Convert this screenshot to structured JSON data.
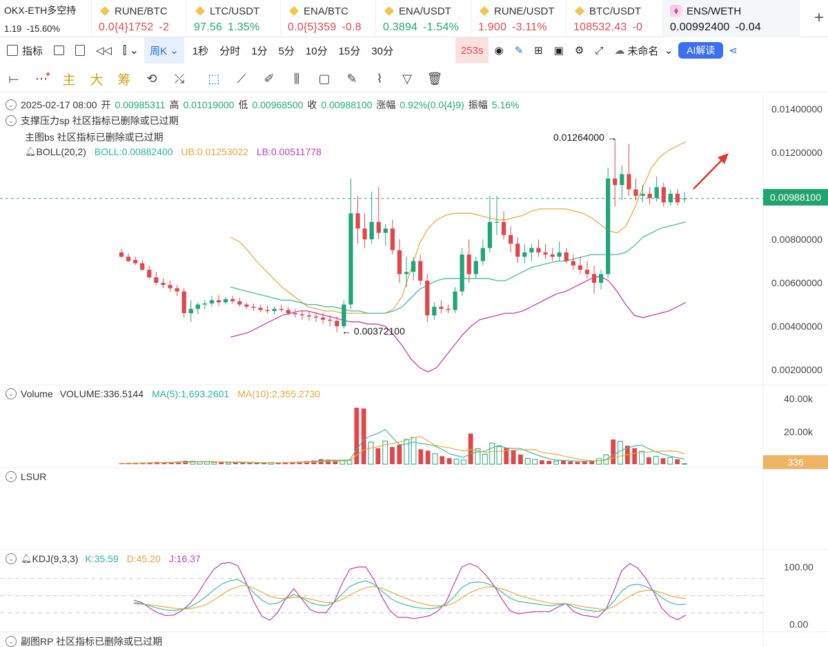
{
  "account": {
    "name": "OKX-ETH多空持",
    "value": "1.19",
    "change": "-15.60%"
  },
  "tickers": [
    {
      "symbol": "RUNE/BTC",
      "price": "0.0{4}1752",
      "change": "-2",
      "color": "red"
    },
    {
      "symbol": "LTC/USDT",
      "price": "97.56",
      "change": "1.35%",
      "color": "green"
    },
    {
      "symbol": "ENA/BTC",
      "price": "0.0{5}359",
      "change": "-0.8",
      "color": "red"
    },
    {
      "symbol": "ENA/USDT",
      "price": "0.3894",
      "change": "-1.54%",
      "color": "green"
    },
    {
      "symbol": "RUNE/USDT",
      "price": "1.900",
      "change": "-3.11%",
      "color": "red"
    },
    {
      "symbol": "BTC/USDT",
      "price": "108532.43",
      "change": "-0",
      "color": "red"
    },
    {
      "symbol": "ENS/WETH",
      "price": "0.00992400",
      "change": "-0.04",
      "color": "dark"
    }
  ],
  "toolbar": {
    "indicators": "指标",
    "interval_selected": "周K",
    "intervals": [
      "1秒",
      "分时",
      "1分",
      "5分",
      "10分",
      "15分",
      "30分"
    ],
    "countdown": "253s",
    "layout_name": "未命名",
    "ai_button": "AI解读"
  },
  "draw_tools": {
    "main": "主",
    "big": "大",
    "chip": "筹"
  },
  "legend": {
    "ohlc_date": "2025-02-17 08:00",
    "open_label": "开",
    "open": "0.00985311",
    "high_label": "高",
    "high": "0.01019000",
    "low_label": "低",
    "low": "0.00968500",
    "close_label": "收",
    "close": "0.00988100",
    "chg_label": "涨幅",
    "chg": "0.92%(0.0{4}9)",
    "amp_label": "振幅",
    "amp": "5.16%",
    "sr_line": "支撑压力sp  社区指标已删除或已过期",
    "bs_line": "主图bs  社区指标已删除或已过期",
    "boll_name": "BOLL(20,2)",
    "boll_mid": "BOLL:0.00882400",
    "boll_ub": "UB:0.01253022",
    "boll_lb": "LB:0.00511778"
  },
  "price_axis": [
    "0.01400000",
    "0.01200000",
    "0.01000000",
    "0.00800000",
    "0.00600000",
    "0.00400000",
    "0.00200000"
  ],
  "price_tag": "0.00988100",
  "annotations": {
    "high": "0.01264000",
    "low": "0.00372100"
  },
  "volume": {
    "title": "Volume",
    "vol": "VOLUME:336.5144",
    "ma5": "MA(5):1,693.2601",
    "ma10": "MA(10):2,355.2730",
    "axis": [
      "40.00k",
      "20.00k"
    ],
    "tag": "336"
  },
  "lsur": {
    "title": "LSUR"
  },
  "kdj": {
    "name": "KDJ(9,3,3)",
    "k": "K:35.59",
    "d": "D:45.20",
    "j": "J:16.37",
    "axis": [
      "100.00",
      "0.00"
    ]
  },
  "rp": {
    "line": "副图RP  社区指标已删除或已过期"
  },
  "colors": {
    "up": "#1fa67a",
    "down": "#e0474b",
    "ub": "#eba93a",
    "lb": "#c43bb3",
    "mid": "#3dbd9c",
    "accent": "#3d6ff2"
  },
  "chart_data": {
    "type": "candlestick",
    "ylim": [
      0.0015,
      0.0145
    ],
    "candles": [
      [
        0.0074,
        0.00755,
        0.00715,
        0.0072
      ],
      [
        0.0072,
        0.00735,
        0.00695,
        0.007
      ],
      [
        0.00705,
        0.0072,
        0.0068,
        0.0069
      ],
      [
        0.0069,
        0.00705,
        0.00655,
        0.0066
      ],
      [
        0.0066,
        0.0068,
        0.00615,
        0.00625
      ],
      [
        0.00625,
        0.0065,
        0.0059,
        0.006
      ],
      [
        0.006,
        0.0062,
        0.00575,
        0.0059
      ],
      [
        0.0059,
        0.0061,
        0.0056,
        0.00575
      ],
      [
        0.00575,
        0.0059,
        0.0054,
        0.0056
      ],
      [
        0.0056,
        0.00575,
        0.0044,
        0.0046
      ],
      [
        0.0046,
        0.0052,
        0.0042,
        0.0048
      ],
      [
        0.0048,
        0.0051,
        0.00455,
        0.005
      ],
      [
        0.005,
        0.0052,
        0.0048,
        0.00505
      ],
      [
        0.00505,
        0.0054,
        0.0049,
        0.0052
      ],
      [
        0.0052,
        0.00545,
        0.00495,
        0.0051
      ],
      [
        0.0051,
        0.00535,
        0.005,
        0.00525
      ],
      [
        0.00525,
        0.0054,
        0.00505,
        0.00515
      ],
      [
        0.00515,
        0.0053,
        0.0049,
        0.005
      ],
      [
        0.005,
        0.0051,
        0.0048,
        0.0049
      ],
      [
        0.0049,
        0.00505,
        0.0047,
        0.00485
      ],
      [
        0.00485,
        0.005,
        0.00465,
        0.00475
      ],
      [
        0.00475,
        0.00495,
        0.0046,
        0.0047
      ],
      [
        0.0047,
        0.0049,
        0.00455,
        0.0048
      ],
      [
        0.0048,
        0.005,
        0.00465,
        0.00475
      ],
      [
        0.00475,
        0.0049,
        0.0045,
        0.0046
      ],
      [
        0.0046,
        0.0048,
        0.0044,
        0.00455
      ],
      [
        0.00455,
        0.00475,
        0.0043,
        0.0045
      ],
      [
        0.0045,
        0.0047,
        0.00425,
        0.00445
      ],
      [
        0.00445,
        0.00465,
        0.0042,
        0.0044
      ],
      [
        0.0044,
        0.0046,
        0.0041,
        0.0043
      ],
      [
        0.0043,
        0.0045,
        0.004,
        0.00425
      ],
      [
        0.00425,
        0.00445,
        0.00372,
        0.004
      ],
      [
        0.004,
        0.0052,
        0.0039,
        0.005
      ],
      [
        0.005,
        0.0108,
        0.0048,
        0.0092
      ],
      [
        0.0092,
        0.01,
        0.0078,
        0.0085
      ],
      [
        0.0085,
        0.0092,
        0.0076,
        0.008
      ],
      [
        0.008,
        0.0102,
        0.0078,
        0.0088
      ],
      [
        0.0088,
        0.0104,
        0.008,
        0.0083
      ],
      [
        0.0083,
        0.0087,
        0.0077,
        0.0085
      ],
      [
        0.0085,
        0.0089,
        0.0073,
        0.0075
      ],
      [
        0.0075,
        0.008,
        0.006,
        0.0064
      ],
      [
        0.0064,
        0.0072,
        0.0058,
        0.0065
      ],
      [
        0.0065,
        0.0072,
        0.0061,
        0.007
      ],
      [
        0.007,
        0.0073,
        0.0059,
        0.0061
      ],
      [
        0.0061,
        0.0064,
        0.0042,
        0.0045
      ],
      [
        0.0045,
        0.0051,
        0.0043,
        0.0049
      ],
      [
        0.0049,
        0.0052,
        0.0046,
        0.0048
      ],
      [
        0.0048,
        0.005,
        0.0046,
        0.00475
      ],
      [
        0.00475,
        0.0058,
        0.0046,
        0.0056
      ],
      [
        0.0056,
        0.0076,
        0.0054,
        0.0073
      ],
      [
        0.0073,
        0.008,
        0.006,
        0.0064
      ],
      [
        0.0064,
        0.0072,
        0.0062,
        0.007
      ],
      [
        0.007,
        0.008,
        0.0068,
        0.0076
      ],
      [
        0.0076,
        0.01,
        0.0074,
        0.0088
      ],
      [
        0.0088,
        0.01,
        0.0082,
        0.0088
      ],
      [
        0.0088,
        0.0093,
        0.008,
        0.0082
      ],
      [
        0.0082,
        0.0086,
        0.0074,
        0.0078
      ],
      [
        0.0078,
        0.0081,
        0.0069,
        0.0072
      ],
      [
        0.0072,
        0.0078,
        0.0069,
        0.0074
      ],
      [
        0.0074,
        0.0078,
        0.007,
        0.0076
      ],
      [
        0.0076,
        0.008,
        0.0072,
        0.0074
      ],
      [
        0.0074,
        0.0078,
        0.0071,
        0.0073
      ],
      [
        0.0073,
        0.0076,
        0.007,
        0.0072
      ],
      [
        0.0072,
        0.0079,
        0.007,
        0.0074
      ],
      [
        0.0074,
        0.0076,
        0.0069,
        0.007
      ],
      [
        0.007,
        0.0073,
        0.0066,
        0.0068
      ],
      [
        0.0068,
        0.0072,
        0.0064,
        0.0066
      ],
      [
        0.0066,
        0.007,
        0.0062,
        0.0064
      ],
      [
        0.0064,
        0.0068,
        0.0055,
        0.006
      ],
      [
        0.006,
        0.0066,
        0.0057,
        0.0064
      ],
      [
        0.0064,
        0.0113,
        0.0062,
        0.0108
      ],
      [
        0.0108,
        0.01264,
        0.0095,
        0.0105
      ],
      [
        0.0105,
        0.0114,
        0.0098,
        0.011
      ],
      [
        0.011,
        0.0124,
        0.01,
        0.0103
      ],
      [
        0.0103,
        0.0108,
        0.0098,
        0.01
      ],
      [
        0.01,
        0.0105,
        0.0097,
        0.0101
      ],
      [
        0.0101,
        0.0104,
        0.0096,
        0.0099
      ],
      [
        0.0099,
        0.0109,
        0.00975,
        0.0104
      ],
      [
        0.0104,
        0.0106,
        0.0095,
        0.0097
      ],
      [
        0.0097,
        0.0103,
        0.00955,
        0.0101
      ],
      [
        0.0101,
        0.0103,
        0.00955,
        0.0097
      ],
      [
        0.00985311,
        0.01019,
        0.009685,
        0.009881
      ]
    ],
    "boll_ub": [
      0.0081,
      0.0079,
      0.0075,
      0.007,
      0.0066,
      0.0062,
      0.0058,
      0.0055,
      0.0052,
      0.0049,
      0.0048,
      0.0047,
      0.0047,
      0.0046,
      0.0046,
      0.0046,
      0.0046,
      0.0046,
      0.0046,
      0.0048,
      0.0054,
      0.0066,
      0.0078,
      0.0085,
      0.0089,
      0.0091,
      0.0092,
      0.0092,
      0.0092,
      0.0091,
      0.009,
      0.0089,
      0.0089,
      0.009,
      0.0091,
      0.0093,
      0.0094,
      0.0094,
      0.0094,
      0.0094,
      0.0093,
      0.0092,
      0.009,
      0.0087,
      0.0084,
      0.0083,
      0.0086,
      0.0094,
      0.0104,
      0.0113,
      0.0118,
      0.0121,
      0.0123,
      0.0125
    ],
    "boll_mid": [
      0.0058,
      0.0057,
      0.0056,
      0.0055,
      0.0054,
      0.0053,
      0.0052,
      0.0052,
      0.0051,
      0.005,
      0.005,
      0.0049,
      0.0049,
      0.0048,
      0.0047,
      0.0047,
      0.0046,
      0.0046,
      0.0046,
      0.0047,
      0.0049,
      0.0053,
      0.0057,
      0.0059,
      0.0061,
      0.0062,
      0.0062,
      0.0062,
      0.0062,
      0.0062,
      0.0062,
      0.0061,
      0.0061,
      0.0063,
      0.0065,
      0.0067,
      0.0068,
      0.0069,
      0.007,
      0.007,
      0.0071,
      0.0072,
      0.0073,
      0.0073,
      0.0073,
      0.0073,
      0.0074,
      0.0077,
      0.0081,
      0.0083,
      0.0085,
      0.0086,
      0.0087,
      0.0088
    ],
    "boll_lb": [
      0.0035,
      0.0036,
      0.0037,
      0.0039,
      0.0041,
      0.0043,
      0.0045,
      0.0046,
      0.0047,
      0.0047,
      0.0046,
      0.0045,
      0.0044,
      0.0043,
      0.0042,
      0.0042,
      0.0041,
      0.0041,
      0.004,
      0.0036,
      0.0031,
      0.0025,
      0.0021,
      0.0019,
      0.0021,
      0.0026,
      0.0031,
      0.0036,
      0.004,
      0.0043,
      0.0044,
      0.0045,
      0.0046,
      0.0046,
      0.0047,
      0.0049,
      0.0051,
      0.0053,
      0.0055,
      0.0056,
      0.0058,
      0.006,
      0.0062,
      0.0063,
      0.0061,
      0.0056,
      0.005,
      0.0045,
      0.0044,
      0.0045,
      0.0046,
      0.0047,
      0.0049,
      0.0051
    ],
    "volume_k": [
      0.5,
      0.6,
      0.8,
      0.9,
      1.2,
      1.4,
      1.1,
      1.3,
      1.6,
      2.1,
      1.8,
      1.5,
      1.4,
      1.1,
      1.2,
      0.9,
      1.0,
      0.8,
      0.7,
      0.8,
      0.9,
      1.0,
      0.8,
      1.2,
      1.4,
      1.6,
      1.9,
      2.3,
      3.1,
      2.8,
      2.4,
      1.9,
      2.6,
      34.5,
      34.0,
      13.5,
      9.8,
      14.2,
      10.5,
      11.8,
      15.2,
      16.4,
      9.1,
      8.3,
      6.4,
      4.9,
      3.7,
      3.1,
      2.6,
      18.7,
      9.5,
      6.1,
      12.9,
      10.8,
      10.1,
      8.4,
      5.9,
      3.6,
      2.8,
      2.4,
      2.1,
      1.9,
      2.3,
      1.7,
      1.4,
      1.6,
      2.2,
      3.4,
      5.7,
      15.1,
      14.0,
      11.3,
      9.8,
      7.9,
      4.2,
      4.8,
      3.7,
      4.1,
      3.0,
      0.34
    ],
    "kdj_k": [
      38,
      36,
      32,
      28,
      25,
      24,
      26,
      30,
      38,
      48,
      60,
      70,
      76,
      78,
      70,
      55,
      42,
      35,
      37,
      45,
      52,
      46,
      38,
      34,
      32,
      38,
      52,
      66,
      72,
      76,
      70,
      58,
      46,
      38,
      34,
      30,
      28,
      27,
      29,
      34,
      48,
      64,
      72,
      74,
      72,
      66,
      56,
      46,
      40,
      38,
      36,
      34,
      32,
      34,
      36,
      30,
      26,
      24,
      22,
      26,
      40,
      58,
      68,
      70,
      66,
      58,
      46,
      38,
      34,
      35
    ],
    "kdj_d": [
      36,
      35,
      34,
      32,
      30,
      28,
      27,
      27,
      30,
      34,
      42,
      52,
      60,
      66,
      68,
      63,
      56,
      49,
      45,
      45,
      47,
      47,
      44,
      41,
      38,
      38,
      43,
      51,
      58,
      64,
      66,
      63,
      57,
      51,
      45,
      40,
      36,
      33,
      32,
      32,
      37,
      46,
      55,
      61,
      65,
      65,
      62,
      57,
      51,
      47,
      43,
      40,
      37,
      36,
      36,
      34,
      31,
      29,
      27,
      26,
      31,
      40,
      49,
      56,
      59,
      59,
      55,
      50,
      47,
      45
    ],
    "kdj_j": [
      42,
      38,
      28,
      20,
      15,
      16,
      24,
      36,
      54,
      76,
      96,
      106,
      108,
      102,
      74,
      39,
      14,
      7,
      21,
      45,
      62,
      44,
      26,
      20,
      20,
      38,
      70,
      96,
      100,
      100,
      78,
      48,
      24,
      12,
      12,
      10,
      12,
      15,
      23,
      38,
      70,
      100,
      106,
      100,
      86,
      68,
      44,
      24,
      18,
      20,
      22,
      22,
      22,
      30,
      36,
      22,
      16,
      14,
      12,
      26,
      58,
      94,
      106,
      98,
      80,
      56,
      28,
      14,
      8,
      16
    ]
  }
}
